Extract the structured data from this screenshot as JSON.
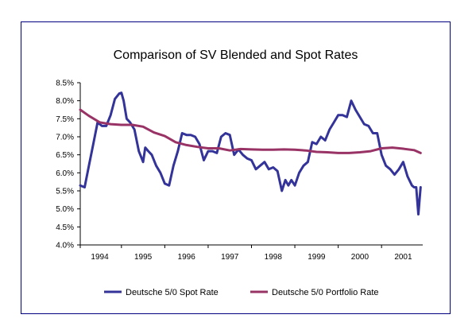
{
  "chart_data": {
    "type": "line",
    "title": "Comparison of SV Blended and Spot Rates",
    "xlabel": "",
    "ylabel": "",
    "ylim": [
      4.0,
      8.5
    ],
    "xlim": [
      1993.55,
      2001.45
    ],
    "y_ticks": [
      "4.0%",
      "4.5%",
      "5.0%",
      "5.5%",
      "6.0%",
      "6.5%",
      "7.0%",
      "7.5%",
      "8.0%",
      "8.5%"
    ],
    "y_tick_values": [
      4.0,
      4.5,
      5.0,
      5.5,
      6.0,
      6.5,
      7.0,
      7.5,
      8.0,
      8.5
    ],
    "x_ticks": [
      "1994",
      "1995",
      "1996",
      "1997",
      "1998",
      "1999",
      "2000",
      "2001"
    ],
    "x_tick_values": [
      1994,
      1995,
      1996,
      1997,
      1998,
      1999,
      2000,
      2001
    ],
    "legend_position": "bottom",
    "grid": false,
    "series": [
      {
        "name": "Deutsche 5/0 Spot Rate",
        "color": "#333399",
        "x": [
          1993.55,
          1993.65,
          1993.75,
          1993.85,
          1993.95,
          1994.05,
          1994.15,
          1994.25,
          1994.35,
          1994.45,
          1994.5,
          1994.55,
          1994.62,
          1994.7,
          1994.8,
          1994.9,
          1995.0,
          1995.05,
          1995.12,
          1995.2,
          1995.3,
          1995.4,
          1995.5,
          1995.6,
          1995.7,
          1995.8,
          1995.9,
          1996.0,
          1996.1,
          1996.2,
          1996.3,
          1996.4,
          1996.5,
          1996.6,
          1996.7,
          1996.8,
          1996.9,
          1997.0,
          1997.1,
          1997.2,
          1997.3,
          1997.4,
          1997.5,
          1997.6,
          1997.7,
          1997.8,
          1997.9,
          1998.0,
          1998.1,
          1998.2,
          1998.28,
          1998.35,
          1998.42,
          1998.5,
          1998.6,
          1998.7,
          1998.8,
          1998.9,
          1999.0,
          1999.1,
          1999.2,
          1999.3,
          1999.4,
          1999.5,
          1999.6,
          1999.7,
          1999.8,
          1999.9,
          2000.0,
          2000.1,
          2000.2,
          2000.3,
          2000.4,
          2000.5,
          2000.6,
          2000.7,
          2000.8,
          2000.9,
          2001.0,
          2001.1,
          2001.2,
          2001.25,
          2001.3,
          2001.35,
          2001.4
        ],
        "values": [
          5.65,
          5.6,
          6.2,
          6.8,
          7.4,
          7.3,
          7.3,
          7.6,
          8.05,
          8.2,
          8.22,
          8.0,
          7.5,
          7.4,
          7.2,
          6.6,
          6.3,
          6.7,
          6.6,
          6.5,
          6.2,
          6.0,
          5.7,
          5.65,
          6.2,
          6.6,
          7.1,
          7.05,
          7.05,
          7.0,
          6.8,
          6.35,
          6.6,
          6.6,
          6.55,
          7.0,
          7.1,
          7.05,
          6.5,
          6.65,
          6.5,
          6.4,
          6.35,
          6.1,
          6.2,
          6.3,
          6.1,
          6.15,
          6.05,
          5.5,
          5.8,
          5.65,
          5.8,
          5.65,
          6.0,
          6.2,
          6.3,
          6.85,
          6.8,
          7.0,
          6.9,
          7.2,
          7.4,
          7.6,
          7.6,
          7.55,
          8.0,
          7.75,
          7.55,
          7.35,
          7.3,
          7.1,
          7.1,
          6.5,
          6.2,
          6.1,
          5.95,
          6.1,
          6.3,
          5.9,
          5.65,
          5.6,
          5.6,
          4.85,
          5.6
        ]
      },
      {
        "name": "Deutsche 5/0 Portfolio Rate",
        "color": "#993366",
        "x": [
          1993.55,
          1993.75,
          1994.0,
          1994.25,
          1994.5,
          1994.75,
          1995.0,
          1995.25,
          1995.5,
          1995.75,
          1996.0,
          1996.25,
          1996.5,
          1996.75,
          1997.0,
          1997.25,
          1997.5,
          1997.75,
          1998.0,
          1998.25,
          1998.5,
          1998.75,
          1999.0,
          1999.25,
          1999.5,
          1999.75,
          2000.0,
          2000.25,
          2000.5,
          2000.75,
          2001.0,
          2001.25,
          2001.4
        ],
        "values": [
          7.75,
          7.58,
          7.4,
          7.35,
          7.33,
          7.33,
          7.28,
          7.12,
          7.02,
          6.85,
          6.77,
          6.72,
          6.68,
          6.68,
          6.62,
          6.66,
          6.65,
          6.64,
          6.64,
          6.65,
          6.64,
          6.62,
          6.58,
          6.57,
          6.55,
          6.55,
          6.57,
          6.6,
          6.68,
          6.7,
          6.67,
          6.63,
          6.55
        ]
      }
    ]
  }
}
